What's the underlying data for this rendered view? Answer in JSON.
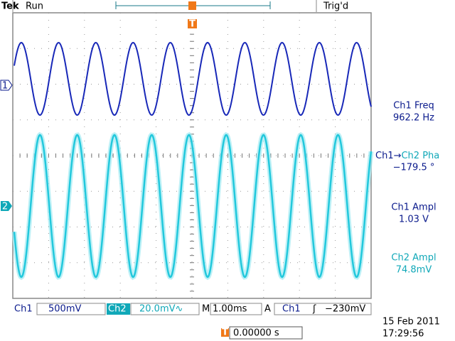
{
  "header": {
    "brand": "Tek",
    "state": "Run",
    "trigger_status": "Trig'd"
  },
  "markers": {
    "trigger": "T",
    "ch1": "1",
    "ch2": "2"
  },
  "measurements": [
    {
      "label": [
        "Ch1 Freq"
      ],
      "value": "962.2 Hz"
    },
    {
      "label": [
        "Ch1→",
        "Ch2 Pha"
      ],
      "value": "−179.5 °"
    },
    {
      "label": [
        "Ch1 Ampl"
      ],
      "value": "1.03 V"
    },
    {
      "label": [
        "Ch2 Ampl"
      ],
      "value": "74.8mV"
    }
  ],
  "status": {
    "ch1": "Ch1",
    "ch1_scale": "500mV",
    "ch2": "Ch2",
    "ch2_scale": "20.0mV∿",
    "timebase_label": "M",
    "timebase": "1.00ms",
    "trigger_mode": "A",
    "trigger_source": "Ch1",
    "trigger_slope": "ʃ",
    "trigger_level": "−230mV"
  },
  "footer": {
    "position": "0.00000 s",
    "date": "15 Feb  2011",
    "time": "17:29:56"
  }
}
